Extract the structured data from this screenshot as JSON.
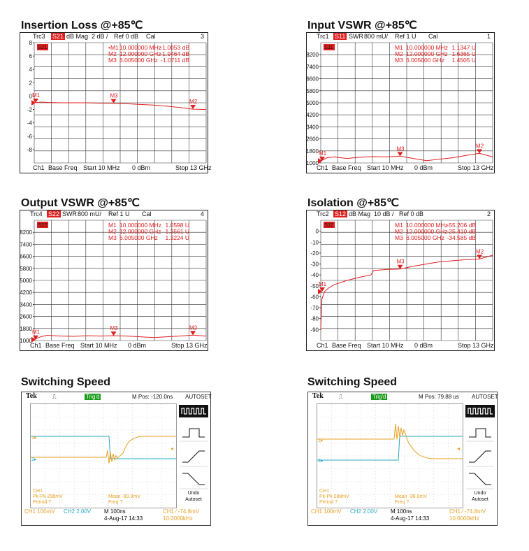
{
  "colors": {
    "trace": "#e02020",
    "grid": "#222222",
    "ch1": "#e8a020",
    "ch2": "#2aa8c0",
    "accent": "#e02020",
    "trig": "#1a9a1a"
  },
  "panels": [
    {
      "title": "Insertion Loss @+85℃",
      "trc": "Trc3",
      "param": "S21",
      "format": "dB Mag",
      "scale": "2 dB /",
      "ref": "Ref 0 dB",
      "cal": "Cal",
      "num": "3",
      "badge": "S21",
      "markers": [
        {
          "label": "•M1",
          "freq": "10.000000 MHz",
          "val": "-1.0053 dB"
        },
        {
          "label": "M2",
          "freq": "12.000000 GHz",
          "val": "-1.9464 dB"
        },
        {
          "label": "M3",
          "freq": "6.005000 GHz",
          "val": "-1.0711 dB"
        }
      ],
      "footer": {
        "ch": "Ch1",
        "base": "Base Freq",
        "start": "Start 10 MHz",
        "power": "0 dBm",
        "stop": "Stop 13 GHz"
      }
    },
    {
      "title": "Input VSWR @+85℃",
      "trc": "Trc1",
      "param": "S11",
      "format": "SWR",
      "scale": "800 mU/",
      "ref": "Ref 1 U",
      "cal": "Cal",
      "num": "1",
      "badge": "S11",
      "markers": [
        {
          "label": "M1",
          "freq": "10.000000 MHz",
          "val": "1.1347 U"
        },
        {
          "label": "M2",
          "freq": "12.000000 GHz",
          "val": "1.6365 U"
        },
        {
          "label": "M3",
          "freq": "6.005000 GHz",
          "val": "1.4505 U"
        }
      ],
      "footer": {
        "ch": "Ch1",
        "base": "Base Freq",
        "start": "Start 10 MHz",
        "power": "0 dBm",
        "stop": "Stop 13 GHz"
      }
    },
    {
      "title": "Output VSWR @+85℃",
      "trc": "Trc4",
      "param": "S22",
      "format": "SWR",
      "scale": "800 mU/",
      "ref": "Ref 1 U",
      "cal": "Cal",
      "num": "4",
      "badge": "S22",
      "markers": [
        {
          "label": "M1",
          "freq": "10.000000 MHz",
          "val": "1.0598 U"
        },
        {
          "label": "M2",
          "freq": "12.000000 GHz",
          "val": "1.3561 U"
        },
        {
          "label": "M3",
          "freq": "6.005000 GHz",
          "val": "1.3224 U"
        }
      ],
      "footer": {
        "ch": "Ch1",
        "base": "Base Freq",
        "start": "Start 10 MHz",
        "power": "0 dBm",
        "stop": "Stop 13 GHz"
      }
    },
    {
      "title": "Isolation @+85℃",
      "trc": "Trc2",
      "param": "S12",
      "format": "dB Mag",
      "scale": "10 dB /",
      "ref": "Ref 0 dB",
      "cal": "",
      "num": "2",
      "badge": "S12",
      "markers": [
        {
          "label": "M1",
          "freq": "10.000000 MHz",
          "val": "-55.206 dB"
        },
        {
          "label": "M2",
          "freq": "12.000000 GHz",
          "val": "-25.410 dB"
        },
        {
          "label": "M3",
          "freq": "6.005000 GHz",
          "val": "-34.585 dB"
        }
      ],
      "footer": {
        "ch": "Ch1",
        "base": "Base Freq",
        "start": "Start 10 MHz",
        "power": "0 dBm",
        "stop": "Stop 13 GHz"
      }
    }
  ],
  "chart_data": [
    {
      "type": "line",
      "title": "Insertion Loss @+85℃",
      "yticks": [
        "8",
        "6",
        "4",
        "2",
        "0",
        "-2",
        "-4",
        "-6",
        "-8"
      ],
      "ylim": [
        -10,
        8
      ],
      "xlim": [
        0.01,
        13
      ],
      "x": [
        0.01,
        0.5,
        1,
        2,
        3,
        4,
        5,
        6,
        7,
        8,
        9,
        10,
        11,
        12,
        13
      ],
      "y": [
        -1.0,
        -0.9,
        -0.95,
        -1.0,
        -1.0,
        -1.0,
        -1.05,
        -1.07,
        -1.15,
        -1.25,
        -1.35,
        -1.5,
        -1.7,
        -1.95,
        -2.0
      ],
      "markers": [
        {
          "name": "M1",
          "x": 0.01,
          "y": -1.0053
        },
        {
          "name": "M2",
          "x": 12,
          "y": -1.9464
        },
        {
          "name": "M3",
          "x": 6.005,
          "y": -1.0711
        }
      ]
    },
    {
      "type": "line",
      "title": "Input VSWR @+85℃",
      "yticks": [
        "8200",
        "7400",
        "6600",
        "5800",
        "5000",
        "4200",
        "3400",
        "2600",
        "1800",
        "1000"
      ],
      "ylim": [
        1000,
        9000
      ],
      "xlim": [
        0.01,
        13
      ],
      "x": [
        0.01,
        0.5,
        1,
        2,
        3,
        4,
        5,
        6,
        7,
        8,
        9,
        10,
        11,
        12,
        13
      ],
      "y": [
        1134.7,
        1350,
        1400,
        1300,
        1380,
        1420,
        1400,
        1450,
        1300,
        1150,
        1250,
        1350,
        1500,
        1636.5,
        1400
      ],
      "markers": [
        {
          "name": "M1",
          "x": 0.01,
          "y": 1134.7
        },
        {
          "name": "M2",
          "x": 12,
          "y": 1636.5
        },
        {
          "name": "M3",
          "x": 6.005,
          "y": 1450.5
        }
      ]
    },
    {
      "type": "line",
      "title": "Output VSWR @+85℃",
      "yticks": [
        "8200",
        "7400",
        "6600",
        "5800",
        "5000",
        "4200",
        "3400",
        "2600",
        "1800",
        "1000"
      ],
      "ylim": [
        1000,
        9000
      ],
      "xlim": [
        0.01,
        13
      ],
      "x": [
        0.01,
        0.5,
        1,
        2,
        3,
        4,
        5,
        6,
        7,
        8,
        9,
        10,
        11,
        12,
        13
      ],
      "y": [
        1059.8,
        1250,
        1350,
        1300,
        1280,
        1320,
        1300,
        1322.4,
        1300,
        1250,
        1200,
        1250,
        1300,
        1356.1,
        1300
      ],
      "markers": [
        {
          "name": "M1",
          "x": 0.01,
          "y": 1059.8
        },
        {
          "name": "M2",
          "x": 12,
          "y": 1356.1
        },
        {
          "name": "M3",
          "x": 6.005,
          "y": 1322.4
        }
      ]
    },
    {
      "type": "line",
      "title": "Isolation @+85℃",
      "yticks": [
        "0",
        "-10",
        "-20",
        "-30",
        "-40",
        "-50",
        "-60",
        "-70",
        "-80",
        "-90"
      ],
      "ylim": [
        -100,
        10
      ],
      "xlim": [
        0.01,
        13
      ],
      "x": [
        0.01,
        0.1,
        0.3,
        0.6,
        1,
        1.5,
        2,
        3,
        3.8,
        4,
        5,
        6,
        7,
        8,
        9,
        10,
        11,
        12,
        13
      ],
      "y": [
        -90,
        -62,
        -55.2,
        -52,
        -49,
        -47,
        -45,
        -42,
        -40,
        -36,
        -35,
        -34.6,
        -32,
        -30,
        -28,
        -27,
        -26,
        -25.4,
        -22
      ],
      "markers": [
        {
          "name": "M1",
          "x": 0.01,
          "y": -55.206
        },
        {
          "name": "M2",
          "x": 12,
          "y": -25.41
        },
        {
          "name": "M3",
          "x": 6.005,
          "y": -34.585
        }
      ]
    }
  ],
  "scopes": [
    {
      "title": "Switching Speed",
      "tek": "Tek",
      "trig": "Trig'd",
      "mpos": "M Pos: -120.0ns",
      "autoset": "AUTOSET",
      "ch1_stats": [
        "CH1",
        "Pk-Pk 296mV",
        "Period ?"
      ],
      "mean_stats": [
        "Mean -80.9mV",
        "Freq ?"
      ],
      "bottom": {
        "ch1": "CH1  100mV",
        "ch2": "CH2  2.00V",
        "m": "M 100ns",
        "date": "4-Aug-17 14:33",
        "trig": "CH1 ⁄ -74.8mV",
        "freq": "10.0000kHz"
      },
      "undo": [
        "Undo",
        "Autoset"
      ],
      "edge": "rising-after"
    },
    {
      "title": "Switching Speed",
      "tek": "Tek",
      "trig": "Trig'd",
      "mpos": "M Pos: 79.88 us",
      "autoset": "AUTOSET",
      "ch1_stats": [
        "CH1",
        "Pk-Pk 288mV",
        "Period ?"
      ],
      "mean_stats": [
        "Mean -36.9mV",
        "Freq ?"
      ],
      "bottom": {
        "ch1": "CH1  100mV",
        "ch2": "CH2  2.00V",
        "m": "M 100ns",
        "date": "4-Aug-17 14:33",
        "trig": "CH1 ⁄ -74.8mV",
        "freq": "10.0000kHz"
      },
      "undo": [
        "Undo",
        "Autoset"
      ],
      "edge": "falling-after"
    }
  ]
}
